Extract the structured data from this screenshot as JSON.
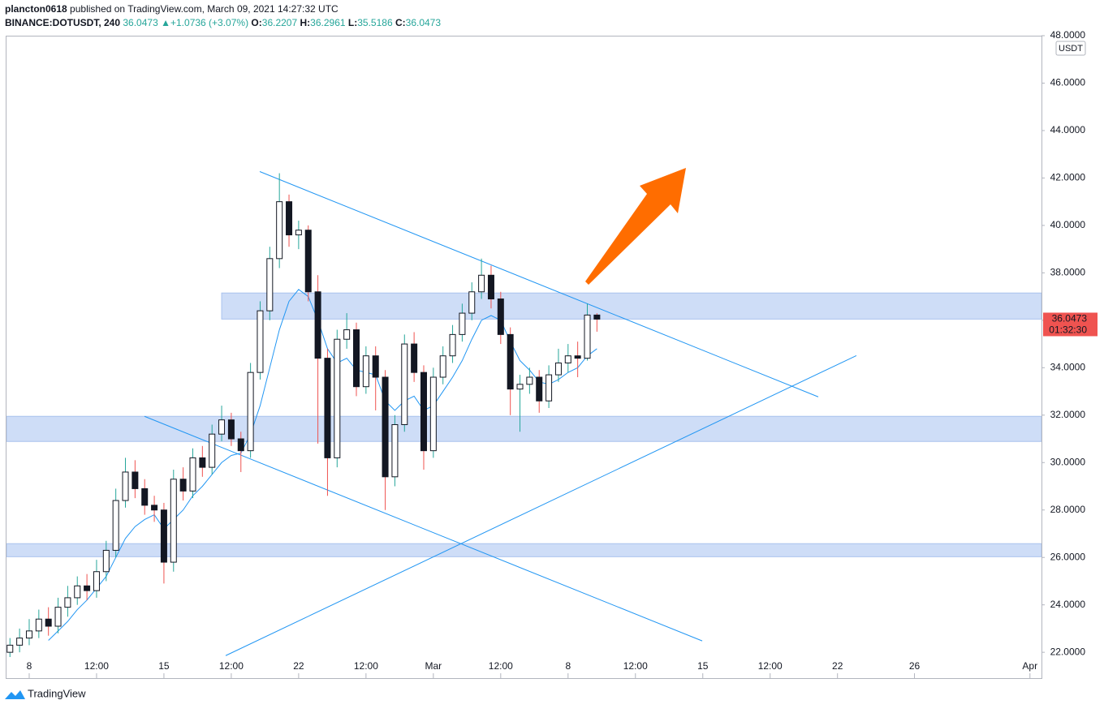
{
  "chart_data": {
    "type": "candlestick",
    "author": "plancton0618",
    "published": "published on TradingView.com, March 09, 2021 14:27:32 UTC",
    "symbol": "BINANCE:DOTUSDT, 240",
    "last": "36.0473",
    "change_arrow": "▲",
    "change": "+1.0736 (+3.07%)",
    "ohlc_labels": [
      "O:",
      "H:",
      "L:",
      "C:"
    ],
    "ohlc_values": [
      "36.2207",
      "36.2961",
      "35.5186",
      "36.0473"
    ],
    "currency": "USDT",
    "last_price": 36.0473,
    "last_price_label": "36.0473",
    "countdown": "01:32:30",
    "footer": "TradingView",
    "up_color": "#26a69a",
    "down_color": "#ef5350",
    "ma_color": "#2196f3",
    "drawing_color": "#2196f3",
    "zone_color": "#c5d7f6",
    "x": [
      7.0,
      7.5,
      8.0,
      8.5,
      9.0,
      9.5,
      10.0,
      10.5,
      11.0,
      11.5,
      12.0,
      12.5,
      13.0,
      13.5,
      14.0,
      14.5,
      15.0,
      15.5,
      16.0,
      16.5,
      17.0,
      17.5,
      18.0,
      18.5,
      19.0,
      19.5,
      20.0,
      20.5,
      21.0,
      21.5,
      22.0,
      22.5,
      23.0,
      23.5,
      24.0,
      24.5,
      25.0,
      25.5,
      26.0,
      26.5,
      27.0,
      27.5,
      28.0,
      28.5,
      29.0,
      29.5,
      30.0,
      30.5,
      31.0,
      31.5,
      32.0,
      32.5,
      33.0,
      33.5,
      34.0,
      34.5,
      35.0,
      35.5,
      36.0,
      36.5,
      37.0,
      37.5
    ],
    "open": [
      22.0,
      22.3,
      22.6,
      22.9,
      23.4,
      23.1,
      23.9,
      24.3,
      24.8,
      24.6,
      25.4,
      26.3,
      28.4,
      29.6,
      28.9,
      28.2,
      28.0,
      25.8,
      29.3,
      28.8,
      30.2,
      29.8,
      31.2,
      31.8,
      31.0,
      30.5,
      33.8,
      36.4,
      38.6,
      41.0,
      39.6,
      39.8,
      37.2,
      34.4,
      30.2,
      35.2,
      35.6,
      33.2,
      34.5,
      33.6,
      29.4,
      31.6,
      35.0,
      33.8,
      30.5,
      33.6,
      34.5,
      35.4,
      36.3,
      37.2,
      37.9,
      36.9,
      35.4,
      33.1,
      33.3,
      33.6,
      32.6,
      33.7,
      34.2,
      34.5,
      34.4,
      36.2207
    ],
    "high": [
      22.6,
      23.0,
      23.4,
      23.8,
      23.9,
      24.3,
      24.8,
      25.2,
      25.3,
      25.9,
      26.7,
      28.9,
      30.2,
      30.1,
      29.3,
      28.6,
      28.3,
      29.7,
      29.8,
      30.6,
      30.7,
      31.6,
      32.4,
      32.1,
      31.3,
      34.2,
      36.8,
      39.1,
      42.2,
      41.3,
      40.2,
      40.0,
      37.9,
      34.8,
      35.6,
      36.3,
      35.9,
      34.9,
      34.9,
      33.9,
      32.0,
      35.4,
      35.5,
      34.1,
      34.0,
      34.9,
      35.8,
      36.7,
      37.6,
      38.6,
      38.3,
      37.2,
      35.7,
      33.7,
      34.0,
      33.9,
      34.1,
      34.8,
      35.0,
      35.1,
      36.7,
      36.2961
    ],
    "low": [
      21.8,
      22.0,
      22.3,
      22.6,
      22.7,
      22.8,
      23.5,
      24.0,
      24.2,
      24.3,
      25.0,
      26.0,
      28.1,
      28.5,
      27.8,
      27.5,
      24.9,
      25.4,
      28.4,
      28.5,
      29.4,
      29.5,
      30.9,
      30.7,
      29.6,
      30.2,
      33.5,
      36.0,
      38.2,
      39.1,
      39.0,
      36.8,
      30.8,
      28.6,
      29.8,
      34.8,
      32.8,
      32.9,
      32.2,
      28.0,
      29.0,
      31.3,
      33.4,
      29.7,
      30.2,
      33.3,
      34.2,
      35.1,
      36.0,
      36.9,
      36.5,
      35.0,
      32.0,
      31.3,
      32.9,
      32.1,
      32.3,
      33.4,
      33.8,
      33.6,
      34.3,
      35.5186
    ],
    "close": [
      22.3,
      22.6,
      22.9,
      23.4,
      23.1,
      23.9,
      24.3,
      24.8,
      24.6,
      25.4,
      26.3,
      28.4,
      29.6,
      28.9,
      28.2,
      28.0,
      25.8,
      29.3,
      28.8,
      30.2,
      29.8,
      31.2,
      31.8,
      31.0,
      30.5,
      33.8,
      36.4,
      38.6,
      41.0,
      39.6,
      39.8,
      37.2,
      34.4,
      30.2,
      35.2,
      35.6,
      33.2,
      34.5,
      33.6,
      29.4,
      31.6,
      35.0,
      33.8,
      30.5,
      33.6,
      34.5,
      35.4,
      36.3,
      37.2,
      37.9,
      36.9,
      35.4,
      33.1,
      33.3,
      33.6,
      32.6,
      33.7,
      34.2,
      34.5,
      34.4,
      36.2207,
      36.0473
    ],
    "ma": [
      null,
      null,
      null,
      null,
      22.5,
      22.9,
      23.3,
      23.8,
      24.2,
      24.7,
      25.2,
      26.0,
      26.8,
      27.3,
      27.6,
      27.8,
      27.2,
      27.6,
      28.0,
      28.6,
      29.0,
      29.5,
      30.0,
      30.3,
      30.4,
      31.2,
      32.4,
      34.0,
      35.6,
      36.8,
      37.3,
      37.0,
      36.0,
      34.8,
      34.2,
      34.4,
      33.9,
      33.8,
      33.7,
      32.6,
      32.2,
      32.6,
      32.8,
      32.2,
      32.4,
      33.0,
      33.6,
      34.3,
      35.2,
      36.0,
      36.2,
      36.0,
      35.1,
      34.3,
      33.9,
      33.4,
      33.3,
      33.5,
      33.8,
      34.0,
      34.5,
      34.8
    ],
    "zones": [
      {
        "x0": 18.0,
        "top": 37.15,
        "bottom": 36.05
      },
      {
        "top": 31.95,
        "bottom": 30.89
      },
      {
        "top": 26.58,
        "bottom": 26.03
      }
    ],
    "trendlines": [
      {
        "x1": 19.98,
        "y1": 42.27,
        "x2": 49.0,
        "y2": 32.77
      },
      {
        "x1": 13.99,
        "y1": 31.95,
        "x2": 42.97,
        "y2": 22.48
      },
      {
        "x1": 18.21,
        "y1": 21.86,
        "x2": 50.98,
        "y2": 34.51
      }
    ],
    "xlim": [
      6.82,
      60.6
    ],
    "xticks": [
      {
        "value": 8,
        "label": "8"
      },
      {
        "value": 11.5,
        "label": "12:00"
      },
      {
        "value": 15,
        "label": "15"
      },
      {
        "value": 18.5,
        "label": "12:00"
      },
      {
        "value": 22,
        "label": "22"
      },
      {
        "value": 25.5,
        "label": "12:00"
      },
      {
        "value": 29,
        "label": "Mar"
      },
      {
        "value": 32.5,
        "label": "12:00"
      },
      {
        "value": 36,
        "label": "8"
      },
      {
        "value": 39.5,
        "label": "12:00"
      },
      {
        "value": 43,
        "label": "15"
      },
      {
        "value": 46.5,
        "label": "12:00"
      },
      {
        "value": 50,
        "label": "22"
      },
      {
        "value": 54,
        "label": "26"
      },
      {
        "value": 60,
        "label": "Apr"
      }
    ],
    "ylim": [
      21.8,
      48
    ],
    "yticks": [
      {
        "value": 22,
        "label": "22.0000"
      },
      {
        "value": 24,
        "label": "24.0000"
      },
      {
        "value": 26,
        "label": "26.0000"
      },
      {
        "value": 28,
        "label": "28.0000"
      },
      {
        "value": 30,
        "label": "30.0000"
      },
      {
        "value": 32,
        "label": "32.0000"
      },
      {
        "value": 34,
        "label": "34.0000"
      },
      {
        "value": 36,
        "label": "36.0000"
      },
      {
        "value": 38,
        "label": "38.0000"
      },
      {
        "value": 40,
        "label": "40.0000"
      },
      {
        "value": 42,
        "label": "42.0000"
      },
      {
        "value": 44,
        "label": "44.0000"
      },
      {
        "value": 46,
        "label": "46.0000"
      },
      {
        "value": 48,
        "label": "48.0000"
      }
    ]
  }
}
